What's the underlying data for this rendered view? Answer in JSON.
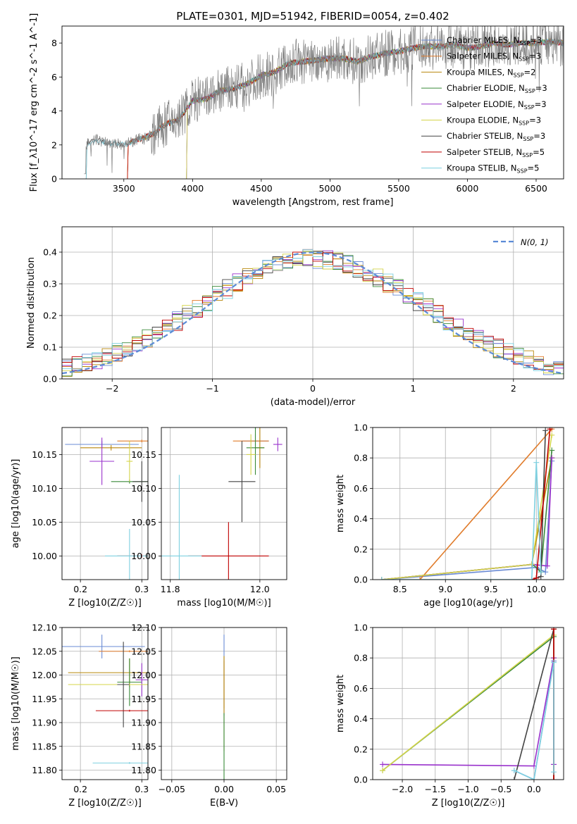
{
  "title": "PLATE=0301, MJD=51942, FIBERID=0054, z=0.402",
  "colors": [
    "#6a8bd4",
    "#e07b2a",
    "#b8860b",
    "#3a8a3a",
    "#9932cc",
    "#d4d44a",
    "#444444",
    "#c00000",
    "#7ed0e0"
  ],
  "chart_data": [
    {
      "id": "spectrum",
      "type": "line",
      "xlabel": "wavelength [Angstrom, rest frame]",
      "ylabel": "Flux [f_λ10^-17 erg cm^-2 s^-1 A^-1]",
      "xlim": [
        3050,
        6700
      ],
      "ylim": [
        0,
        9
      ],
      "xticks": [
        3500,
        4000,
        4500,
        5000,
        5500,
        6000,
        6500
      ],
      "yticks": [
        0,
        2,
        4,
        6,
        8
      ],
      "grid": false,
      "legend_position": "top-right",
      "data_color": "#808080",
      "continuum": {
        "x": [
          3220,
          3300,
          3400,
          3500,
          3600,
          3700,
          3800,
          3900,
          4000,
          4100,
          4200,
          4300,
          4400,
          4500,
          4600,
          4700,
          4800,
          4900,
          5000,
          5100,
          5200,
          5300,
          5400,
          5500,
          5600,
          5700,
          5800,
          5900,
          6000,
          6100,
          6200,
          6300,
          6400,
          6500,
          6600,
          6700
        ],
        "y": [
          2.0,
          2.3,
          2.1,
          2.0,
          2.3,
          2.6,
          3.2,
          3.5,
          4.6,
          4.7,
          5.2,
          5.3,
          5.6,
          6.1,
          6.3,
          6.8,
          6.9,
          7.0,
          7.1,
          7.1,
          6.9,
          7.2,
          7.4,
          7.5,
          7.7,
          7.8,
          7.8,
          7.9,
          7.7,
          7.8,
          8.0,
          7.9,
          8.0,
          8.0,
          8.1,
          8.0
        ]
      },
      "series": [
        {
          "label": "Chabrier MILES, N_SSP=3",
          "start": 3520
        },
        {
          "label": "Salpeter MILES, N_SSP=3",
          "start": 3520
        },
        {
          "label": "Kroupa MILES, N_SSP=2",
          "start": 3520
        },
        {
          "label": "Chabrier ELODIE, N_SSP=3",
          "start": 3950
        },
        {
          "label": "Salpeter ELODIE, N_SSP=3",
          "start": 3950
        },
        {
          "label": "Kroupa ELODIE, N_SSP=3",
          "start": 3950
        },
        {
          "label": "Chabrier STELIB, N_SSP=3",
          "start": 3220
        },
        {
          "label": "Salpeter STELIB, N_SSP=5",
          "start": 3520
        },
        {
          "label": "Kroupa STELIB, N_SSP=5",
          "start": 3220
        }
      ]
    },
    {
      "id": "residuals",
      "type": "step",
      "xlabel": "(data-model)/error",
      "ylabel": "Normed distribution",
      "xlim": [
        -2.5,
        2.5
      ],
      "ylim": [
        0,
        0.48
      ],
      "xticks": [
        -2,
        -1,
        0,
        1,
        2
      ],
      "yticks": [
        0.0,
        0.1,
        0.2,
        0.3,
        0.4
      ],
      "grid": true,
      "legend_position": "top-right",
      "normal_curve": {
        "label": "N(0, 1)",
        "mean": 0,
        "sigma": 1
      },
      "bin_width": 0.1
    },
    {
      "id": "age-vs-Z",
      "type": "errorbar",
      "xlabel": "Z [log10(Z/Z☉)]",
      "ylabel": "age [log10(age/yr)]",
      "xlim": [
        0.17,
        0.31
      ],
      "ylim": [
        9.965,
        10.19
      ],
      "xticks": [
        0.2,
        0.3
      ],
      "yticks": [
        10.0,
        10.05,
        10.1,
        10.15
      ],
      "grid": true,
      "points": [
        {
          "x": 0.235,
          "y": 10.165,
          "xerr": 0.06,
          "yerr": 0.005
        },
        {
          "x": 0.3,
          "y": 10.17,
          "xerr": 0.04,
          "yerr": 0.002
        },
        {
          "x": 0.25,
          "y": 10.16,
          "xerr": 0.05,
          "yerr": 0.004
        },
        {
          "x": 0.28,
          "y": 10.11,
          "xerr": 0.03,
          "yerr": 0.003
        },
        {
          "x": 0.235,
          "y": 10.14,
          "xerr": 0.02,
          "yerr": 0.035
        },
        {
          "x": 0.28,
          "y": 10.14,
          "xerr": 0.005,
          "yerr": 0.03
        },
        {
          "x": 0.3,
          "y": 10.11,
          "xerr": 0.015,
          "yerr": 0.03
        },
        {
          "x": 0.3,
          "y": 10.0,
          "xerr": 0.04,
          "yerr": 0.002
        },
        {
          "x": 0.28,
          "y": 10.0,
          "xerr": 0.04,
          "yerr": 0.04
        }
      ]
    },
    {
      "id": "age-vs-mass",
      "type": "errorbar",
      "xlabel": "mass [log10(M/M☉)]",
      "ylabel": "",
      "xlim": [
        11.78,
        12.06
      ],
      "ylim": [
        9.965,
        10.19
      ],
      "xticks": [
        11.8,
        12.0
      ],
      "yticks": [
        10.0,
        10.05,
        10.1,
        10.15
      ],
      "grid": true,
      "points": [
        {
          "x": 11.99,
          "y": 10.17,
          "xerr": 0.03,
          "yerr": 0.01
        },
        {
          "x": 11.98,
          "y": 10.17,
          "xerr": 0.04,
          "yerr": 0.002
        },
        {
          "x": 12.0,
          "y": 10.16,
          "xerr": 0.01,
          "yerr": 0.03
        },
        {
          "x": 11.99,
          "y": 10.16,
          "xerr": 0.02,
          "yerr": 0.04
        },
        {
          "x": 12.04,
          "y": 10.165,
          "xerr": 0.01,
          "yerr": 0.01
        },
        {
          "x": 11.98,
          "y": 10.15,
          "xerr": 0.01,
          "yerr": 0.03
        },
        {
          "x": 11.96,
          "y": 10.11,
          "xerr": 0.03,
          "yerr": 0.06
        },
        {
          "x": 11.93,
          "y": 10.0,
          "xerr": 0.09,
          "yerr": 0.05
        },
        {
          "x": 11.82,
          "y": 10.0,
          "xerr": 0.05,
          "yerr": 0.12
        }
      ]
    },
    {
      "id": "weight-vs-age",
      "type": "line",
      "xlabel": "age [log10(age/yr)]",
      "ylabel": "mass weight",
      "xlim": [
        8.2,
        10.3
      ],
      "ylim": [
        0,
        1.0
      ],
      "xticks": [
        8.5,
        9.0,
        9.5,
        10.0
      ],
      "yticks": [
        0.0,
        0.2,
        0.4,
        0.6,
        0.8,
        1.0
      ],
      "grid": true,
      "series": [
        {
          "x": [
            8.3,
            10.0,
            10.1,
            10.17
          ],
          "y": [
            0.0,
            0.08,
            0.05,
            0.78
          ]
        },
        {
          "x": [
            8.72,
            10.17
          ],
          "y": [
            0.0,
            0.99
          ]
        },
        {
          "x": [
            8.3,
            9.95,
            10.17
          ],
          "y": [
            0.0,
            0.1,
            0.8
          ]
        },
        {
          "x": [
            8.3,
            9.96,
            10.05,
            10.17
          ],
          "y": [
            0.0,
            0.1,
            0.05,
            0.85
          ]
        },
        {
          "x": [
            8.3,
            9.95,
            10.12,
            10.17
          ],
          "y": [
            0.0,
            0.1,
            0.09,
            0.8
          ]
        },
        {
          "x": [
            8.3,
            9.95,
            10.17
          ],
          "y": [
            0.0,
            0.1,
            0.95
          ]
        },
        {
          "x": [
            9.95,
            10.05,
            10.1
          ],
          "y": [
            0.0,
            0.02,
            0.98
          ]
        },
        {
          "x": [
            9.95,
            10.0,
            10.15
          ],
          "y": [
            0.0,
            0.01,
            0.99
          ]
        },
        {
          "x": [
            8.3,
            9.95,
            10.0,
            10.05
          ],
          "y": [
            0.0,
            0.0,
            0.77,
            0.05
          ]
        }
      ]
    },
    {
      "id": "mass-vs-Z",
      "type": "errorbar",
      "xlabel": "Z [log10(Z/Z☉)]",
      "ylabel": "mass [log10(M/M☉)]",
      "xlim": [
        0.17,
        0.31
      ],
      "ylim": [
        11.78,
        12.1
      ],
      "xticks": [
        0.2,
        0.3
      ],
      "yticks": [
        11.8,
        11.85,
        11.9,
        11.95,
        12.0,
        12.05,
        12.1
      ],
      "grid": true,
      "points": [
        {
          "x": 0.235,
          "y": 12.06,
          "xerr": 0.07,
          "yerr": 0.025
        },
        {
          "x": 0.28,
          "y": 12.05,
          "xerr": 0.05,
          "yerr": 0.002
        },
        {
          "x": 0.28,
          "y": 12.005,
          "xerr": 0.1,
          "yerr": 0.03
        },
        {
          "x": 0.28,
          "y": 11.985,
          "xerr": 0.02,
          "yerr": 0.05
        },
        {
          "x": 0.3,
          "y": 11.99,
          "xerr": 0.01,
          "yerr": 0.035
        },
        {
          "x": 0.28,
          "y": 11.98,
          "xerr": 0.1,
          "yerr": 0.002
        },
        {
          "x": 0.27,
          "y": 11.98,
          "xerr": 0.01,
          "yerr": 0.09
        },
        {
          "x": 0.28,
          "y": 11.925,
          "xerr": 0.055,
          "yerr": 0.002
        },
        {
          "x": 0.28,
          "y": 11.815,
          "xerr": 0.06,
          "yerr": 0.002
        }
      ]
    },
    {
      "id": "mass-vs-EBV",
      "type": "errorbar",
      "xlabel": "E(B-V)",
      "ylabel": "",
      "xlim": [
        -0.06,
        0.06
      ],
      "ylim": [
        11.78,
        12.1
      ],
      "xticks": [
        -0.05,
        0.0,
        0.05
      ],
      "yticks": [
        11.8,
        11.85,
        11.9,
        11.95,
        12.0,
        12.05,
        12.1
      ],
      "grid": true,
      "points": [
        {
          "x": 0.0,
          "y": 12.0,
          "xerr": 0,
          "yerr": 0.085
        },
        {
          "x": 0.0,
          "y": 11.98,
          "xerr": 0,
          "yerr": 0.05
        },
        {
          "x": 0.0,
          "y": 11.94,
          "xerr": 0,
          "yerr": 0.1
        },
        {
          "x": 0.0,
          "y": 11.85,
          "xerr": 0,
          "yerr": 0.07
        }
      ]
    },
    {
      "id": "weight-vs-Z",
      "type": "line",
      "xlabel": "Z [log10(Z/Z☉)]",
      "ylabel": "mass weight",
      "xlim": [
        -2.45,
        0.45
      ],
      "ylim": [
        0,
        1.0
      ],
      "xticks": [
        -2.0,
        -1.5,
        -1.0,
        -0.5,
        0.0
      ],
      "yticks": [
        0.0,
        0.2,
        0.4,
        0.6,
        0.8,
        1.0
      ],
      "grid": true,
      "series": [
        {
          "x": [
            -0.3,
            0.0,
            0.3,
            0.3
          ],
          "y": [
            0.06,
            0.0,
            0.78,
            0.1
          ]
        },
        {
          "x": [
            0.3,
            0.3
          ],
          "y": [
            0.0,
            0.99
          ]
        },
        {
          "x": [
            0.3,
            0.3
          ],
          "y": [
            0.0,
            0.8
          ]
        },
        {
          "x": [
            -2.3,
            0.3
          ],
          "y": [
            0.06,
            0.94
          ]
        },
        {
          "x": [
            -2.3,
            0.0,
            0.3,
            0.3
          ],
          "y": [
            0.1,
            0.09,
            0.8,
            0.1
          ]
        },
        {
          "x": [
            -2.3,
            0.3
          ],
          "y": [
            0.06,
            0.95
          ]
        },
        {
          "x": [
            -0.3,
            0.3,
            0.3
          ],
          "y": [
            0.0,
            0.99,
            0.0
          ]
        },
        {
          "x": [
            0.3,
            0.3
          ],
          "y": [
            0.0,
            0.99
          ]
        },
        {
          "x": [
            -0.3,
            0.0,
            0.3,
            0.3
          ],
          "y": [
            0.06,
            0.0,
            0.77,
            0.05
          ]
        }
      ]
    }
  ]
}
